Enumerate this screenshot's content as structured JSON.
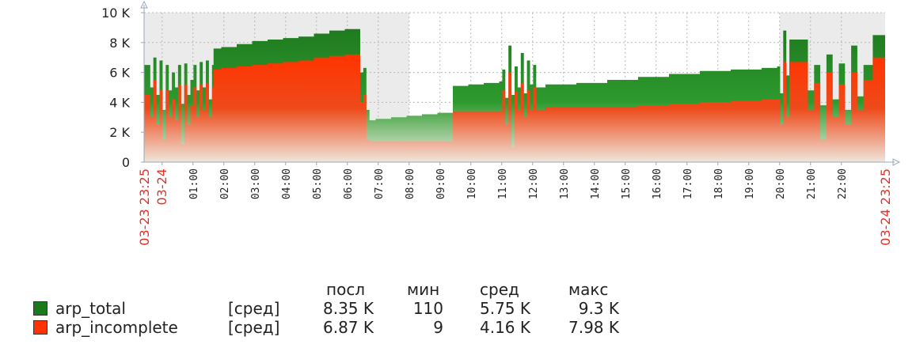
{
  "chart_data": {
    "type": "area",
    "y_ticks": [
      "0",
      "2 K",
      "4 K",
      "6 K",
      "8 K",
      "10 K"
    ],
    "ylim": [
      0,
      10000
    ],
    "x_ticks": [
      "03-24",
      "01:00",
      "02:00",
      "03:00",
      "04:00",
      "05:00",
      "06:00",
      "07:00",
      "08:00",
      "09:00",
      "10:00",
      "11:00",
      "12:00",
      "13:00",
      "14:00",
      "15:00",
      "16:00",
      "17:00",
      "18:00",
      "19:00",
      "20:00",
      "21:00",
      "22:00"
    ],
    "x_start_label": "03-23 23:25",
    "x_end_label": "03-24 23:25",
    "grid": true,
    "x_hours": [
      0,
      0.2,
      0.3,
      0.4,
      0.5,
      0.6,
      0.7,
      0.8,
      0.9,
      1.0,
      1.1,
      1.2,
      1.3,
      1.4,
      1.5,
      1.6,
      1.7,
      1.8,
      1.9,
      2.0,
      2.1,
      2.2,
      2.25,
      2.5,
      3.0,
      3.5,
      4.0,
      4.5,
      5.0,
      5.5,
      6.0,
      6.5,
      6.9,
      7.0,
      7.1,
      7.2,
      7.3,
      7.4,
      7.5,
      8.0,
      8.5,
      9.0,
      9.5,
      9.6,
      10.0,
      10.5,
      11.0,
      11.5,
      11.6,
      11.7,
      11.8,
      11.9,
      12.0,
      12.1,
      12.2,
      12.3,
      12.4,
      12.5,
      12.6,
      12.7,
      13.0,
      14.0,
      15.0,
      16.0,
      17.0,
      18.0,
      19.0,
      20.0,
      20.5,
      20.6,
      20.7,
      20.8,
      20.9,
      21.0,
      21.1,
      21.2,
      21.5,
      21.7,
      21.9,
      22.1,
      22.3,
      22.5,
      22.7,
      22.9,
      23.1,
      23.3,
      23.6,
      24.0
    ],
    "series": [
      {
        "name": "arp_total",
        "color": "#1a7a1a",
        "values": [
          6500,
          5000,
          7000,
          4500,
          6800,
          3500,
          6500,
          4800,
          6000,
          5000,
          6500,
          3900,
          6600,
          4500,
          5500,
          6500,
          4800,
          6700,
          5000,
          6800,
          4200,
          6500,
          7600,
          7700,
          7900,
          8100,
          8200,
          8300,
          8400,
          8600,
          8800,
          8900,
          8900,
          6000,
          6300,
          3500,
          2800,
          2800,
          2900,
          3000,
          3100,
          3200,
          3300,
          3300,
          5100,
          5200,
          5300,
          5400,
          6200,
          4300,
          7800,
          4500,
          6400,
          5000,
          7300,
          4600,
          6800,
          5200,
          6500,
          5000,
          5200,
          5300,
          5500,
          5700,
          5900,
          6100,
          6200,
          6300,
          6400,
          4600,
          8800,
          5800,
          8200,
          8200,
          8200,
          8200,
          4800,
          6500,
          3800,
          7200,
          4200,
          6600,
          3500,
          7800,
          4400,
          6500,
          8500,
          8400
        ]
      },
      {
        "name": "arp_incomplete",
        "color": "#ff3300",
        "values": [
          4500,
          3000,
          5500,
          2500,
          4800,
          1500,
          4800,
          3000,
          4200,
          2800,
          5200,
          1200,
          5200,
          2500,
          3800,
          5000,
          3000,
          5200,
          3500,
          5300,
          3000,
          5000,
          6200,
          6300,
          6400,
          6500,
          6600,
          6700,
          6800,
          7000,
          7100,
          7200,
          7200,
          4000,
          4500,
          1500,
          1400,
          1400,
          1400,
          1400,
          1400,
          1400,
          1400,
          1400,
          3400,
          3400,
          3400,
          3400,
          4800,
          2500,
          6000,
          1000,
          4700,
          3500,
          5300,
          3000,
          4800,
          3500,
          5000,
          3500,
          3700,
          3700,
          3700,
          3800,
          3900,
          4000,
          4100,
          4200,
          4200,
          2500,
          6700,
          3000,
          6700,
          6700,
          6700,
          6700,
          3500,
          5300,
          1500,
          6000,
          3000,
          5200,
          2500,
          6000,
          3500,
          5500,
          7000,
          7000
        ]
      }
    ]
  },
  "legend": {
    "headers": {
      "last": "посл",
      "min": "мин",
      "avg": "сред",
      "max": "макс"
    },
    "rows": [
      {
        "name": "arp_total",
        "agg": "[сред]",
        "last": "8.35 K",
        "min": "110",
        "avg": "5.75 K",
        "max": "9.3 K",
        "color": "#1a7a1a"
      },
      {
        "name": "arp_incomplete",
        "agg": "[сред]",
        "last": "6.87 K",
        "min": "9",
        "avg": "4.16 K",
        "max": "7.98 K",
        "color": "#ff3300"
      }
    ]
  }
}
